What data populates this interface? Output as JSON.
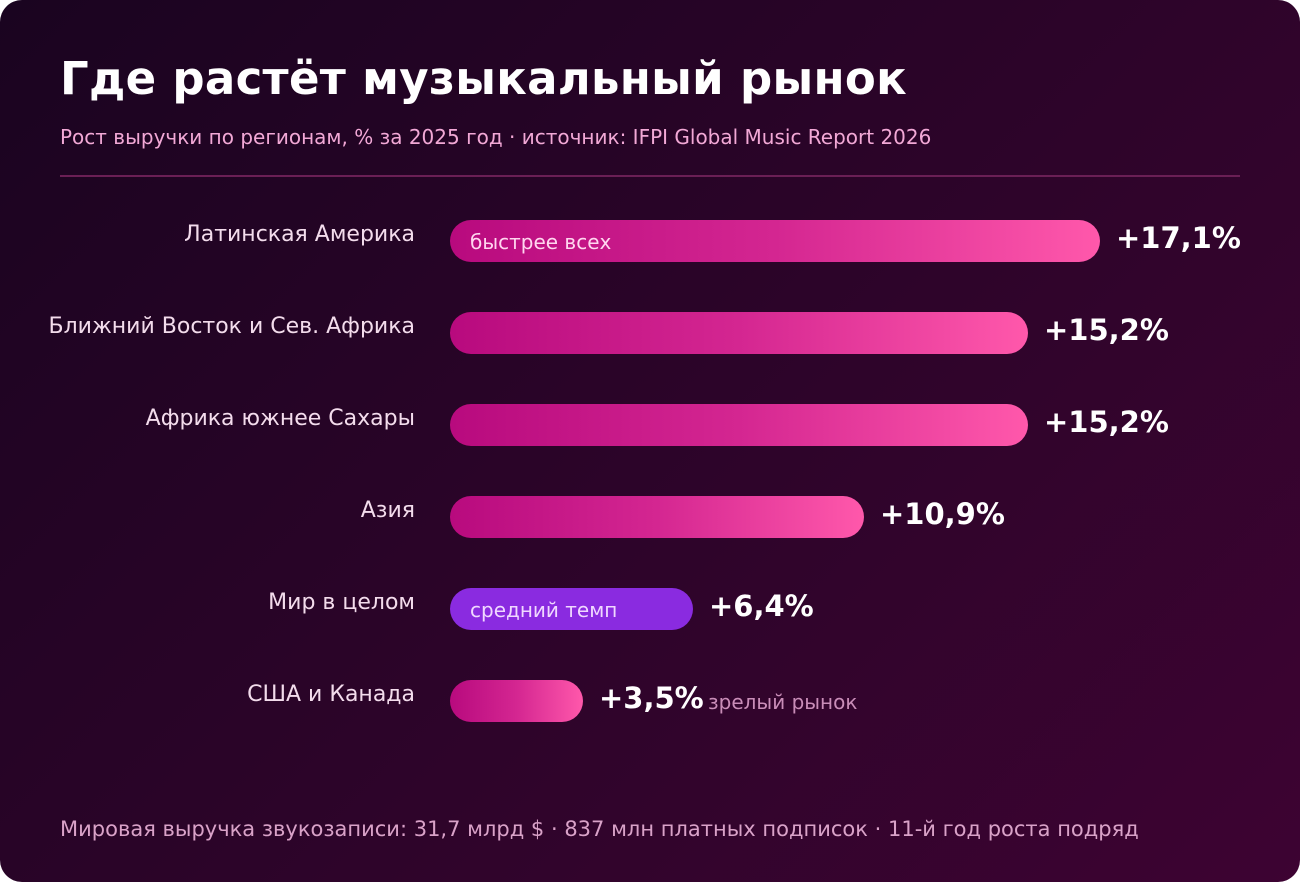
{
  "title": "Где растёт музыкальный рынок",
  "subtitle": "Рост выручки по регионам, % за 2025 год · источник: IFPI Global Music Report 2026",
  "footer": "Мировая выручка звукозаписи: 31,7 млрд $ · 837 млн платных подписок · 11-й год роста подряд",
  "colors": {
    "bar_gradient_start": "#b80a7e",
    "bar_gradient_end": "#ff58ab",
    "average_bar": "#8a2be0",
    "background": "#2a0428"
  },
  "chart_data": {
    "type": "bar",
    "orientation": "horizontal",
    "grid": false,
    "categories": [
      "Латинская Америка",
      "Ближний Восток и Сев. Африка",
      "Африка южнее Сахары",
      "Азия",
      "Мир в целом",
      "США и Канада"
    ],
    "values": [
      17.1,
      15.2,
      15.2,
      10.9,
      6.4,
      3.5
    ],
    "value_labels": [
      "+17,1%",
      "+15,2%",
      "+15,2%",
      "+10,9%",
      "+6,4%",
      "+3,5%"
    ],
    "annotations": [
      {
        "category": "Латинская Америка",
        "text": "быстрее всех"
      },
      {
        "category": "Мир в целом",
        "text": "средний темп"
      },
      {
        "category": "США и Канада",
        "text": "зрелый рынок"
      }
    ],
    "highlight_category": "Мир в целом"
  }
}
